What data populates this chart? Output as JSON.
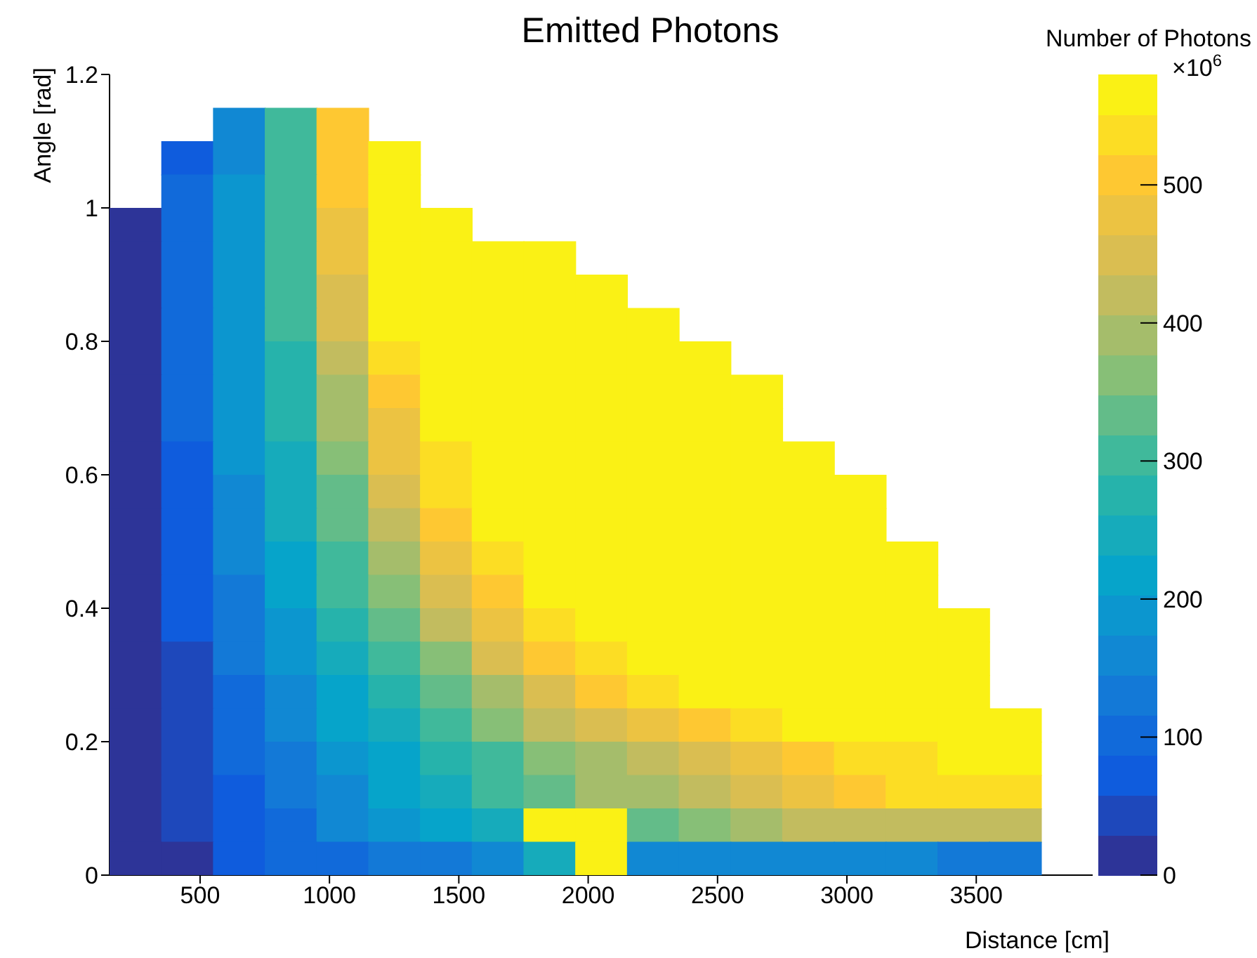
{
  "chart_data": {
    "type": "scatter",
    "title": "Emitted Photons",
    "xlabel": "Distance [cm]",
    "ylabel": "Angle [rad]",
    "clabel": "Number of Photons",
    "annotations": [
      "×10$^{6}$"
    ],
    "marker": "square",
    "xlim": [
      150,
      3950
    ],
    "xticks": [
      500,
      1000,
      1500,
      2000,
      2500,
      3000,
      3500
    ],
    "ylim": [
      0,
      1.2
    ],
    "yticks": [
      0,
      0.2,
      0.4,
      0.6,
      0.8,
      1,
      1.2
    ],
    "clim": [
      0,
      580
    ],
    "cticks": [
      0,
      100,
      200,
      300,
      400,
      500
    ],
    "x": [
      650,
      850,
      1050,
      450,
      650,
      850,
      1050,
      1250,
      450,
      650,
      850,
      1050,
      1250,
      250,
      450,
      650,
      850,
      1050,
      1250,
      1450,
      250,
      450,
      650,
      850,
      1050,
      1250,
      1450,
      1650,
      1850,
      250,
      450,
      650,
      850,
      1050,
      1250,
      1450,
      1650,
      1850,
      2050,
      250,
      450,
      650,
      850,
      1050,
      1250,
      1450,
      1650,
      1850,
      2050,
      2250,
      250,
      450,
      650,
      850,
      1050,
      1250,
      1450,
      1650,
      1850,
      2050,
      2250,
      2450,
      250,
      450,
      650,
      850,
      1050,
      1250,
      1450,
      1650,
      1850,
      2050,
      2250,
      2450,
      2650,
      250,
      450,
      650,
      850,
      1050,
      1250,
      1450,
      1650,
      1850,
      2050,
      2250,
      2450,
      2650,
      250,
      450,
      650,
      850,
      1050,
      1250,
      1450,
      1650,
      1850,
      2050,
      2250,
      2450,
      2650,
      2850,
      250,
      450,
      650,
      850,
      1050,
      1250,
      1450,
      1650,
      1850,
      2050,
      2250,
      2450,
      2650,
      2850,
      3050,
      250,
      450,
      650,
      850,
      1050,
      1250,
      1450,
      1650,
      1850,
      2050,
      2250,
      2450,
      2650,
      2850,
      3050,
      250,
      450,
      650,
      850,
      1050,
      1250,
      1450,
      1650,
      1850,
      2050,
      2250,
      2450,
      2650,
      2850,
      3050,
      3250,
      250,
      450,
      650,
      850,
      1050,
      1250,
      1450,
      1650,
      1850,
      2050,
      2250,
      2450,
      2650,
      2850,
      3050,
      3250,
      250,
      450,
      650,
      850,
      1050,
      1250,
      1450,
      1650,
      1850,
      2050,
      2250,
      2450,
      2650,
      2850,
      3050,
      3250,
      3450,
      250,
      450,
      650,
      850,
      1050,
      1250,
      1450,
      1650,
      1850,
      2050,
      2250,
      2450,
      2650,
      2850,
      3050,
      3250,
      3450,
      250,
      450,
      650,
      850,
      1050,
      1250,
      1450,
      1650,
      1850,
      2050,
      2250,
      2450,
      2650,
      2850,
      3050,
      3250,
      3450,
      250,
      450,
      650,
      850,
      1050,
      1250,
      1450,
      1650,
      1850,
      2050,
      2250,
      2450,
      2650,
      2850,
      3050,
      3250,
      3450,
      3650,
      250,
      450,
      650,
      850,
      1050,
      1250,
      1450,
      1650,
      1850,
      2050,
      2250,
      2450,
      2650,
      2850,
      3050,
      3250,
      3450,
      3650,
      250,
      450,
      650,
      850,
      1050,
      1250,
      1450,
      1650,
      1850,
      2050,
      2250,
      2450,
      2650,
      2850,
      3050,
      3250,
      3450,
      3650,
      250,
      450,
      650,
      850,
      1050,
      1250,
      1450,
      1650,
      1850,
      2050,
      2250,
      2450,
      2650,
      2850,
      3050,
      3250,
      3450,
      3650,
      250,
      450,
      650,
      850,
      1050,
      1250,
      1450,
      1650,
      1850,
      2050,
      2250,
      2450,
      2650,
      2850,
      3050,
      3250,
      3450,
      3650
    ],
    "values": [
      1.125,
      1.125,
      1.125,
      1.075,
      1.075,
      1.075,
      1.075,
      1.075,
      1.025,
      1.025,
      1.025,
      1.025,
      1.025,
      0.975,
      0.975,
      0.975,
      0.975,
      0.975,
      0.975,
      0.975,
      0.925,
      0.925,
      0.925,
      0.925,
      0.925,
      0.925,
      0.925,
      0.925,
      0.925,
      0.875,
      0.875,
      0.875,
      0.875,
      0.875,
      0.875,
      0.875,
      0.875,
      0.875,
      0.875,
      0.825,
      0.825,
      0.825,
      0.825,
      0.825,
      0.825,
      0.825,
      0.825,
      0.825,
      0.825,
      0.825,
      0.775,
      0.775,
      0.775,
      0.775,
      0.775,
      0.775,
      0.775,
      0.775,
      0.775,
      0.775,
      0.775,
      0.775,
      0.725,
      0.725,
      0.725,
      0.725,
      0.725,
      0.725,
      0.725,
      0.725,
      0.725,
      0.725,
      0.725,
      0.725,
      0.725,
      0.675,
      0.675,
      0.675,
      0.675,
      0.675,
      0.675,
      0.675,
      0.675,
      0.675,
      0.675,
      0.675,
      0.675,
      0.675,
      0.625,
      0.625,
      0.625,
      0.625,
      0.625,
      0.625,
      0.625,
      0.625,
      0.625,
      0.625,
      0.625,
      0.625,
      0.625,
      0.625,
      0.575,
      0.575,
      0.575,
      0.575,
      0.575,
      0.575,
      0.575,
      0.575,
      0.575,
      0.575,
      0.575,
      0.575,
      0.575,
      0.575,
      0.575,
      0.525,
      0.525,
      0.525,
      0.525,
      0.525,
      0.525,
      0.525,
      0.525,
      0.525,
      0.525,
      0.525,
      0.525,
      0.525,
      0.525,
      0.525,
      0.475,
      0.475,
      0.475,
      0.475,
      0.475,
      0.475,
      0.475,
      0.475,
      0.475,
      0.475,
      0.475,
      0.475,
      0.475,
      0.475,
      0.475,
      0.475,
      0.425,
      0.425,
      0.425,
      0.425,
      0.425,
      0.425,
      0.425,
      0.425,
      0.425,
      0.425,
      0.425,
      0.425,
      0.425,
      0.425,
      0.425,
      0.425,
      0.375,
      0.375,
      0.375,
      0.375,
      0.375,
      0.375,
      0.375,
      0.375,
      0.375,
      0.375,
      0.375,
      0.375,
      0.375,
      0.375,
      0.375,
      0.375,
      0.375,
      0.325,
      0.325,
      0.325,
      0.325,
      0.325,
      0.325,
      0.325,
      0.325,
      0.325,
      0.325,
      0.325,
      0.325,
      0.325,
      0.325,
      0.325,
      0.325,
      0.325,
      0.275,
      0.275,
      0.275,
      0.275,
      0.275,
      0.275,
      0.275,
      0.275,
      0.275,
      0.275,
      0.275,
      0.275,
      0.275,
      0.275,
      0.275,
      0.275,
      0.275,
      0.225,
      0.225,
      0.225,
      0.225,
      0.225,
      0.225,
      0.225,
      0.225,
      0.225,
      0.225,
      0.225,
      0.225,
      0.225,
      0.225,
      0.225,
      0.225,
      0.225,
      0.225,
      0.175,
      0.175,
      0.175,
      0.175,
      0.175,
      0.175,
      0.175,
      0.175,
      0.175,
      0.175,
      0.175,
      0.175,
      0.175,
      0.175,
      0.175,
      0.175,
      0.175,
      0.175,
      0.125,
      0.125,
      0.125,
      0.125,
      0.125,
      0.125,
      0.125,
      0.125,
      0.125,
      0.125,
      0.125,
      0.125,
      0.125,
      0.125,
      0.125,
      0.125,
      0.125,
      0.125,
      0.075,
      0.075,
      0.075,
      0.075,
      0.075,
      0.075,
      0.075,
      0.075,
      0.075,
      0.075,
      0.075,
      0.075,
      0.075,
      0.075,
      0.075,
      0.075,
      0.075,
      0.075,
      0.025,
      0.025,
      0.025,
      0.025,
      0.025,
      0.025,
      0.025,
      0.025,
      0.025,
      0.025,
      0.025,
      0.025,
      0.025,
      0.025,
      0.025,
      0.025,
      0.025,
      0.025
    ],
    "cvalues": [
      150,
      300,
      500,
      80,
      170,
      300,
      500,
      580,
      90,
      180,
      300,
      500,
      580,
      20,
      95,
      190,
      300,
      490,
      580,
      580,
      20,
      100,
      200,
      300,
      480,
      580,
      580,
      580,
      580,
      18,
      100,
      195,
      295,
      460,
      570,
      580,
      580,
      580,
      580,
      15,
      105,
      195,
      290,
      440,
      560,
      580,
      580,
      580,
      580,
      580,
      15,
      100,
      190,
      285,
      420,
      540,
      580,
      580,
      580,
      580,
      580,
      580,
      12,
      95,
      185,
      280,
      400,
      520,
      580,
      580,
      580,
      580,
      580,
      580,
      580,
      12,
      90,
      180,
      270,
      380,
      490,
      570,
      580,
      580,
      580,
      580,
      580,
      580,
      10,
      85,
      175,
      260,
      360,
      470,
      550,
      580,
      580,
      580,
      580,
      580,
      580,
      580,
      10,
      80,
      165,
      250,
      340,
      450,
      530,
      580,
      580,
      580,
      580,
      580,
      580,
      580,
      580,
      10,
      75,
      160,
      240,
      330,
      430,
      510,
      570,
      580,
      580,
      580,
      580,
      580,
      580,
      580,
      10,
      70,
      150,
      230,
      310,
      400,
      480,
      550,
      580,
      580,
      580,
      580,
      580,
      580,
      580,
      580,
      10,
      65,
      140,
      215,
      290,
      370,
      450,
      520,
      570,
      580,
      580,
      580,
      580,
      580,
      580,
      580,
      10,
      60,
      130,
      200,
      270,
      340,
      410,
      480,
      540,
      575,
      580,
      580,
      580,
      580,
      580,
      580,
      580,
      10,
      55,
      120,
      185,
      250,
      310,
      375,
      440,
      500,
      540,
      570,
      580,
      580,
      580,
      580,
      580,
      580,
      10,
      50,
      110,
      170,
      230,
      285,
      340,
      400,
      450,
      500,
      540,
      565,
      580,
      580,
      580,
      580,
      580,
      10,
      45,
      100,
      155,
      210,
      260,
      310,
      360,
      410,
      450,
      490,
      520,
      550,
      570,
      580,
      580,
      580,
      580,
      8,
      40,
      90,
      140,
      185,
      230,
      270,
      310,
      350,
      400,
      420,
      450,
      480,
      510,
      530,
      550,
      560,
      570,
      8,
      35,
      80,
      125,
      170,
      210,
      250,
      290,
      340,
      400,
      380,
      420,
      460,
      490,
      510,
      530,
      540,
      540,
      6,
      30,
      70,
      110,
      150,
      185,
      220,
      250,
      580,
      580,
      330,
      360,
      390,
      410,
      420,
      430,
      430,
      420,
      5,
      25,
      60,
      90,
      110,
      125,
      135,
      150,
      250,
      580,
      150,
      150,
      150,
      150,
      150,
      150,
      140,
      140
    ]
  }
}
